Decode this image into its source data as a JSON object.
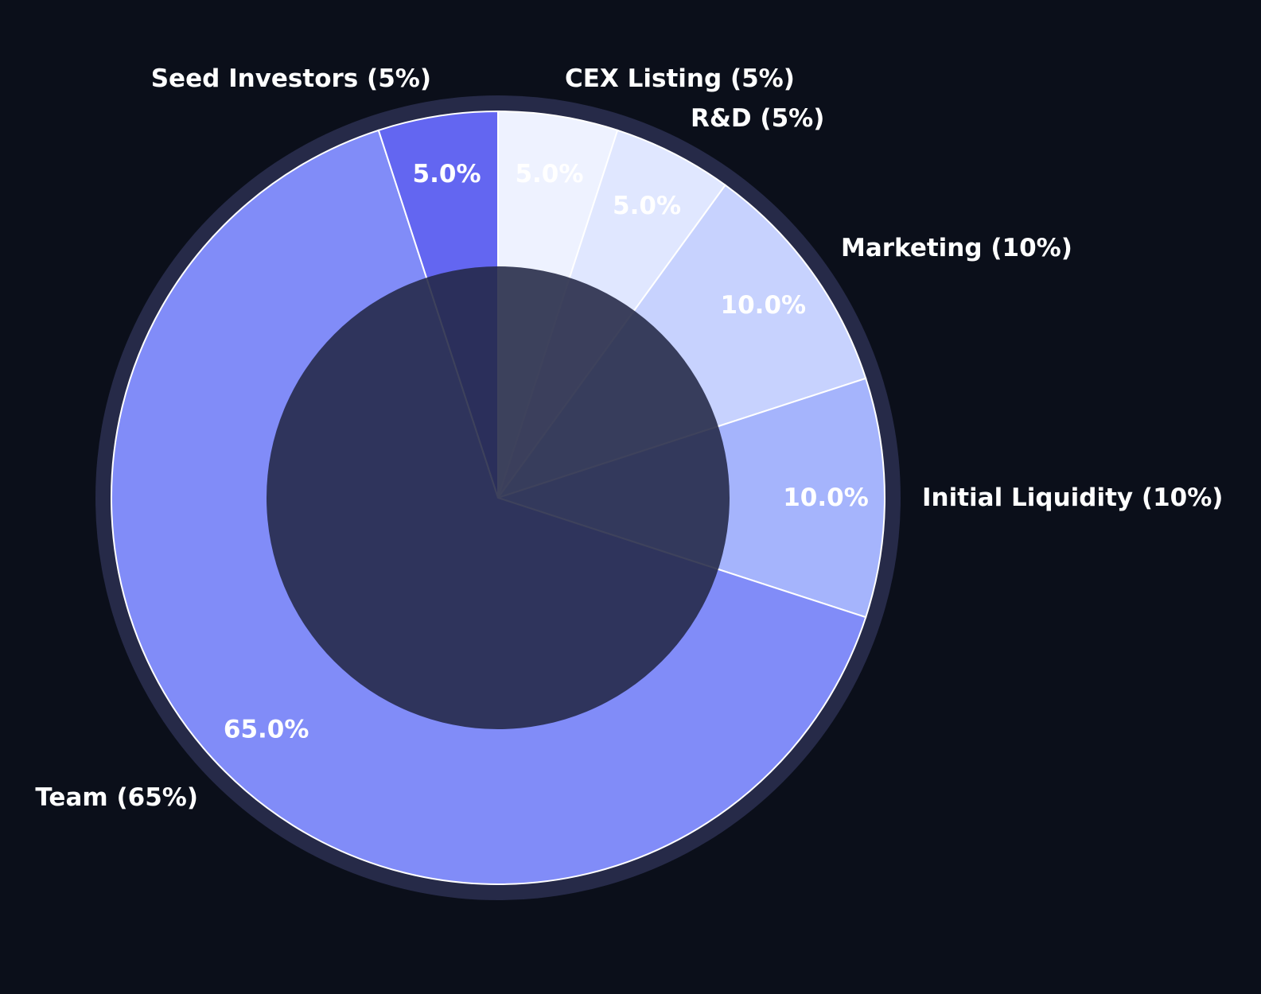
{
  "chart_data": {
    "type": "pie",
    "style": "donut",
    "start_angle": "12 o'clock",
    "direction": "clockwise",
    "slices": [
      {
        "label": "CEX Listing (5%)",
        "value": 5,
        "pct_label": "5.0%",
        "color": "#eef2ff"
      },
      {
        "label": "R&D (5%)",
        "value": 5,
        "pct_label": "5.0%",
        "color": "#e0e7ff"
      },
      {
        "label": "Marketing (10%)",
        "value": 10,
        "pct_label": "10.0%",
        "color": "#c7d2fe"
      },
      {
        "label": "Initial Liquidity (10%)",
        "value": 10,
        "pct_label": "10.0%",
        "color": "#a5b4fc"
      },
      {
        "label": "Team (65%)",
        "value": 65,
        "pct_label": "65.0%",
        "color": "#818cf8"
      },
      {
        "label": "Seed Investors (5%)",
        "value": 5,
        "pct_label": "5.0%",
        "color": "#6366f1"
      }
    ],
    "legend": "none",
    "colors": {
      "background": "#0b0f1a",
      "hole": "#232845",
      "ring": "#262a48",
      "label": "#ffffff",
      "slice_edge": "#ffffff"
    }
  }
}
